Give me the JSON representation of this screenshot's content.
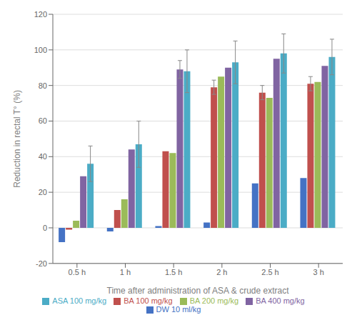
{
  "chart_data": {
    "type": "bar",
    "xlabel": "Time after administration of ASA & crude extract",
    "ylabel": "Reduction in rectal T° (%)",
    "categories": [
      "0.5 h",
      "1 h",
      "1.5 h",
      "2 h",
      "2.5 h",
      "3 h"
    ],
    "series": [
      {
        "name": "DW 10 ml/kg",
        "color": "#4472C4",
        "values": [
          -8,
          -2,
          1,
          3,
          25,
          28
        ],
        "errors": [
          0,
          0,
          0,
          0,
          0,
          0
        ]
      },
      {
        "name": "BA 100 mg/kg",
        "color": "#C0504D",
        "values": [
          -1,
          10,
          43,
          79,
          76,
          81
        ],
        "errors": [
          0,
          0,
          0,
          4,
          4,
          4
        ]
      },
      {
        "name": "BA 200 mg/kg",
        "color": "#9BBB59",
        "values": [
          4,
          16,
          42,
          85,
          73,
          82
        ],
        "errors": [
          0,
          0,
          0,
          0,
          0,
          0
        ]
      },
      {
        "name": "BA 400 mg/kg",
        "color": "#8064A2",
        "values": [
          29,
          44,
          89,
          90,
          95,
          91
        ],
        "errors": [
          0,
          0,
          5,
          0,
          0,
          0
        ]
      },
      {
        "name": "ASA 100 mg/kg",
        "color": "#4BACC6",
        "values": [
          36,
          47,
          88,
          93,
          98,
          96
        ],
        "errors": [
          10,
          13,
          12,
          12,
          11,
          10
        ]
      }
    ],
    "ylim": [
      -20,
      120
    ],
    "yticks": [
      -20,
      0,
      20,
      40,
      60,
      80,
      100,
      120
    ],
    "grid": true,
    "legend": "bottom"
  }
}
